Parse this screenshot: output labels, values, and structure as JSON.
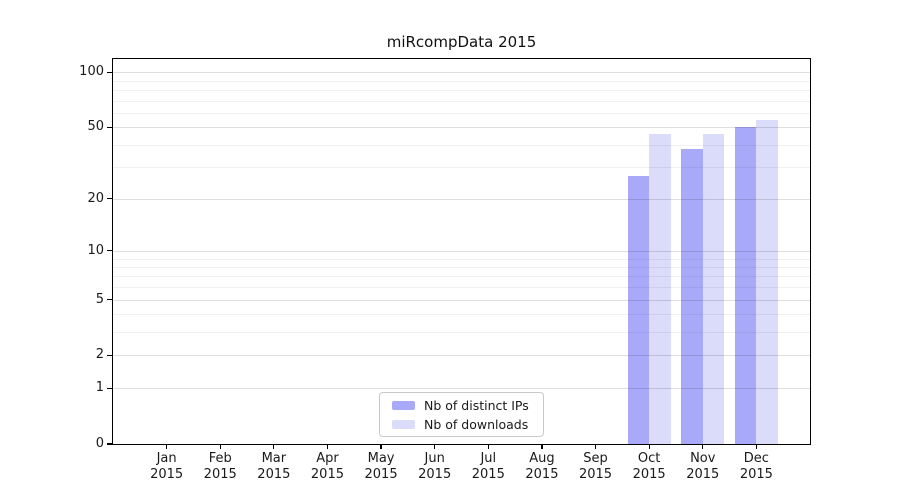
{
  "chart_data": {
    "type": "bar",
    "title": "miRcompData 2015",
    "categories": [
      "Jan",
      "Feb",
      "Mar",
      "Apr",
      "May",
      "Jun",
      "Jul",
      "Aug",
      "Sep",
      "Oct",
      "Nov",
      "Dec"
    ],
    "x_sub_label": "2015",
    "series": [
      {
        "name": "Nb of distinct IPs",
        "color": "#a9a9f9",
        "values": [
          0,
          0,
          0,
          0,
          0,
          0,
          0,
          0,
          0,
          27,
          38,
          50
        ]
      },
      {
        "name": "Nb of downloads",
        "color": "#dbdbfa",
        "values": [
          0,
          0,
          0,
          0,
          0,
          0,
          0,
          0,
          0,
          46,
          46,
          55
        ]
      }
    ],
    "yscale": "log1p",
    "ylim": [
      0,
      118
    ],
    "yticks": [
      0,
      1,
      2,
      5,
      10,
      20,
      50,
      100
    ],
    "grid_major": [
      1,
      2,
      5,
      10,
      20,
      50,
      100
    ],
    "grid_minor": [
      3,
      4,
      6,
      7,
      8,
      9,
      30,
      40,
      60,
      70,
      80,
      90
    ],
    "legend_position": "bottom-center-inside",
    "frame_color": "#000000",
    "legend_border_color": "#c9c9c9"
  }
}
